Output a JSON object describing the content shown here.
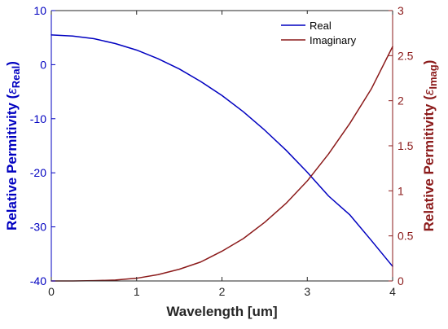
{
  "chart_data": {
    "type": "line",
    "xlabel": "Wavelength [um]",
    "ylabel_left": {
      "prefix": "Relative Permitivity (",
      "symbol": "ε",
      "subscript": "Real",
      "suffix": ")"
    },
    "ylabel_right": {
      "prefix": "Relative Permitivity (",
      "symbol": "ε",
      "subscript": "Imag",
      "suffix": ")"
    },
    "xlim": [
      0,
      4
    ],
    "ylim_left": [
      -40,
      10
    ],
    "ylim_right": [
      0,
      3
    ],
    "x_ticks": [
      "0",
      "1",
      "2",
      "3",
      "4"
    ],
    "y_left_ticks": [
      "-40",
      "-30",
      "-20",
      "-10",
      "0",
      "10"
    ],
    "y_right_ticks": [
      "0",
      "0.5",
      "1",
      "1.5",
      "2",
      "2.5",
      "3"
    ],
    "grid": false,
    "legend_position": "top-right",
    "series": [
      {
        "name": "Real",
        "axis": "left",
        "color": "#0000c0",
        "x": [
          0,
          0.25,
          0.5,
          0.75,
          1.0,
          1.25,
          1.5,
          1.75,
          2.0,
          2.25,
          2.5,
          2.75,
          3.0,
          3.25,
          3.5,
          3.75,
          4.0
        ],
        "y": [
          5.5,
          5.3,
          4.8,
          3.9,
          2.7,
          1.1,
          -0.8,
          -3.1,
          -5.7,
          -8.7,
          -12.1,
          -15.8,
          -19.9,
          -24.3,
          -27.8,
          -32.5,
          -37.3
        ]
      },
      {
        "name": "Imaginary",
        "axis": "right",
        "color": "#8b1a1a",
        "x": [
          0,
          0.25,
          0.5,
          0.75,
          1.0,
          1.25,
          1.5,
          1.75,
          2.0,
          2.25,
          2.5,
          2.75,
          3.0,
          3.25,
          3.5,
          3.75,
          4.0
        ],
        "y": [
          0.0,
          0.0,
          0.003,
          0.01,
          0.03,
          0.07,
          0.13,
          0.21,
          0.33,
          0.47,
          0.65,
          0.86,
          1.11,
          1.41,
          1.75,
          2.13,
          2.6
        ]
      }
    ]
  },
  "colors": {
    "left_axis": "#0000c0",
    "right_axis": "#8b1a1a",
    "axis_dark": "#262626"
  }
}
